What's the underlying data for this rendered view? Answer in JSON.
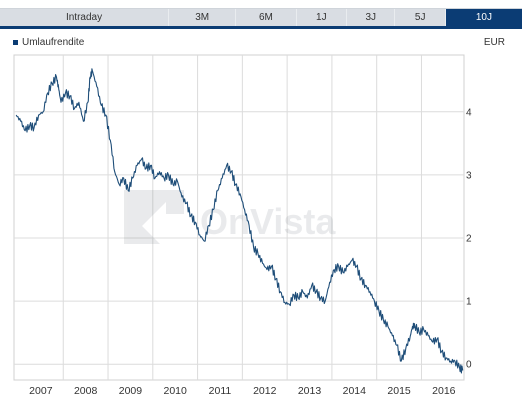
{
  "tabs": [
    {
      "label": "Intraday",
      "active": false
    },
    {
      "label": "3M",
      "active": false
    },
    {
      "label": "6M",
      "active": false
    },
    {
      "label": "1J",
      "active": false
    },
    {
      "label": "3J",
      "active": false
    },
    {
      "label": "5J",
      "active": false
    },
    {
      "label": "10J",
      "active": true
    }
  ],
  "legend": {
    "label": "Umlaufrendite"
  },
  "currency": "EUR",
  "watermark": "OnVista",
  "colors": {
    "accent": "#0b3c74",
    "line": "#1f4e79",
    "grid": "#dcdcdc"
  },
  "chart_data": {
    "type": "line",
    "ylim": [
      -0.25,
      4.9
    ],
    "y_ticks": [
      0,
      1,
      2,
      3,
      4
    ],
    "x_ticks": [
      "2007",
      "2008",
      "2009",
      "2010",
      "2011",
      "2012",
      "2013",
      "2014",
      "2015",
      "2016"
    ],
    "xlim": [
      2006.4,
      2016.45
    ],
    "grid": "on",
    "legend_position": "top-left",
    "series": [
      {
        "name": "Umlaufrendite",
        "points": [
          [
            2006.45,
            3.95
          ],
          [
            2006.55,
            3.85
          ],
          [
            2006.65,
            3.7
          ],
          [
            2006.75,
            3.78
          ],
          [
            2006.85,
            3.75
          ],
          [
            2006.95,
            3.95
          ],
          [
            2007.05,
            4.0
          ],
          [
            2007.15,
            4.3
          ],
          [
            2007.25,
            4.45
          ],
          [
            2007.35,
            4.55
          ],
          [
            2007.4,
            4.35
          ],
          [
            2007.45,
            4.15
          ],
          [
            2007.55,
            4.3
          ],
          [
            2007.65,
            4.25
          ],
          [
            2007.75,
            4.05
          ],
          [
            2007.85,
            4.15
          ],
          [
            2007.95,
            3.85
          ],
          [
            2008.05,
            4.15
          ],
          [
            2008.1,
            4.55
          ],
          [
            2008.15,
            4.65
          ],
          [
            2008.25,
            4.4
          ],
          [
            2008.35,
            4.1
          ],
          [
            2008.45,
            3.95
          ],
          [
            2008.55,
            3.55
          ],
          [
            2008.65,
            3.05
          ],
          [
            2008.75,
            2.85
          ],
          [
            2008.85,
            2.95
          ],
          [
            2008.95,
            2.75
          ],
          [
            2009.05,
            2.95
          ],
          [
            2009.15,
            3.15
          ],
          [
            2009.25,
            3.25
          ],
          [
            2009.35,
            3.1
          ],
          [
            2009.45,
            3.15
          ],
          [
            2009.55,
            2.95
          ],
          [
            2009.65,
            3.05
          ],
          [
            2009.75,
            2.95
          ],
          [
            2009.85,
            3.0
          ],
          [
            2009.95,
            2.85
          ],
          [
            2010.05,
            2.9
          ],
          [
            2010.15,
            2.65
          ],
          [
            2010.25,
            2.55
          ],
          [
            2010.35,
            2.35
          ],
          [
            2010.45,
            2.25
          ],
          [
            2010.55,
            2.05
          ],
          [
            2010.65,
            1.95
          ],
          [
            2010.75,
            2.2
          ],
          [
            2010.85,
            2.45
          ],
          [
            2010.95,
            2.75
          ],
          [
            2011.05,
            2.95
          ],
          [
            2011.15,
            3.15
          ],
          [
            2011.25,
            3.05
          ],
          [
            2011.35,
            2.85
          ],
          [
            2011.45,
            2.7
          ],
          [
            2011.55,
            2.45
          ],
          [
            2011.65,
            2.2
          ],
          [
            2011.75,
            1.85
          ],
          [
            2011.85,
            1.75
          ],
          [
            2011.95,
            1.6
          ],
          [
            2012.05,
            1.5
          ],
          [
            2012.15,
            1.55
          ],
          [
            2012.25,
            1.35
          ],
          [
            2012.35,
            1.15
          ],
          [
            2012.45,
            0.98
          ],
          [
            2012.55,
            0.95
          ],
          [
            2012.65,
            1.1
          ],
          [
            2012.75,
            1.05
          ],
          [
            2012.85,
            1.15
          ],
          [
            2012.95,
            1.05
          ],
          [
            2013.05,
            1.25
          ],
          [
            2013.15,
            1.15
          ],
          [
            2013.25,
            1.05
          ],
          [
            2013.35,
            1.0
          ],
          [
            2013.45,
            1.3
          ],
          [
            2013.55,
            1.5
          ],
          [
            2013.65,
            1.55
          ],
          [
            2013.75,
            1.45
          ],
          [
            2013.85,
            1.55
          ],
          [
            2013.95,
            1.65
          ],
          [
            2014.05,
            1.55
          ],
          [
            2014.15,
            1.35
          ],
          [
            2014.25,
            1.25
          ],
          [
            2014.35,
            1.15
          ],
          [
            2014.45,
            1.0
          ],
          [
            2014.55,
            0.85
          ],
          [
            2014.65,
            0.7
          ],
          [
            2014.75,
            0.6
          ],
          [
            2014.85,
            0.45
          ],
          [
            2014.95,
            0.3
          ],
          [
            2015.05,
            0.05
          ],
          [
            2015.15,
            0.25
          ],
          [
            2015.25,
            0.45
          ],
          [
            2015.3,
            0.6
          ],
          [
            2015.35,
            0.62
          ],
          [
            2015.45,
            0.5
          ],
          [
            2015.55,
            0.55
          ],
          [
            2015.65,
            0.45
          ],
          [
            2015.75,
            0.35
          ],
          [
            2015.85,
            0.4
          ],
          [
            2015.95,
            0.2
          ],
          [
            2016.05,
            0.1
          ],
          [
            2016.15,
            0.05
          ],
          [
            2016.25,
            0.05
          ],
          [
            2016.35,
            -0.05
          ],
          [
            2016.42,
            -0.1
          ]
        ]
      }
    ]
  }
}
